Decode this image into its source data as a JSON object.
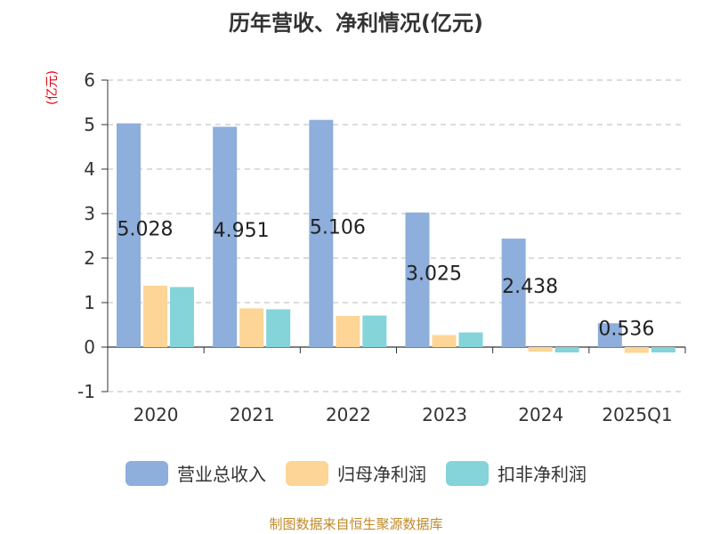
{
  "chart_data": {
    "type": "bar",
    "title": "历年营收、净利情况(亿元)",
    "unit_label": "(亿元)",
    "categories": [
      "2020",
      "2021",
      "2022",
      "2023",
      "2024",
      "2025Q1"
    ],
    "series": [
      {
        "name": "营业总收入",
        "color": "#8eaedb",
        "values": [
          5.028,
          4.951,
          5.106,
          3.025,
          2.438,
          0.536
        ]
      },
      {
        "name": "归母净利润",
        "color": "#fdd596",
        "values": [
          1.38,
          0.87,
          0.7,
          0.27,
          -0.1,
          -0.13
        ]
      },
      {
        "name": "扣非净利润",
        "color": "#84d4d9",
        "values": [
          1.35,
          0.85,
          0.71,
          0.33,
          -0.12,
          -0.12
        ]
      }
    ],
    "data_labels": [
      "5.028",
      "4.951",
      "5.106",
      "3.025",
      "2.438",
      "0.536"
    ],
    "ylim": [
      -1,
      6
    ],
    "yticks": [
      "-1",
      "0",
      "1",
      "2",
      "3",
      "4",
      "5",
      "6"
    ],
    "grid": true,
    "legend_position": "bottom"
  },
  "source": "制图数据来自恒生聚源数据库"
}
